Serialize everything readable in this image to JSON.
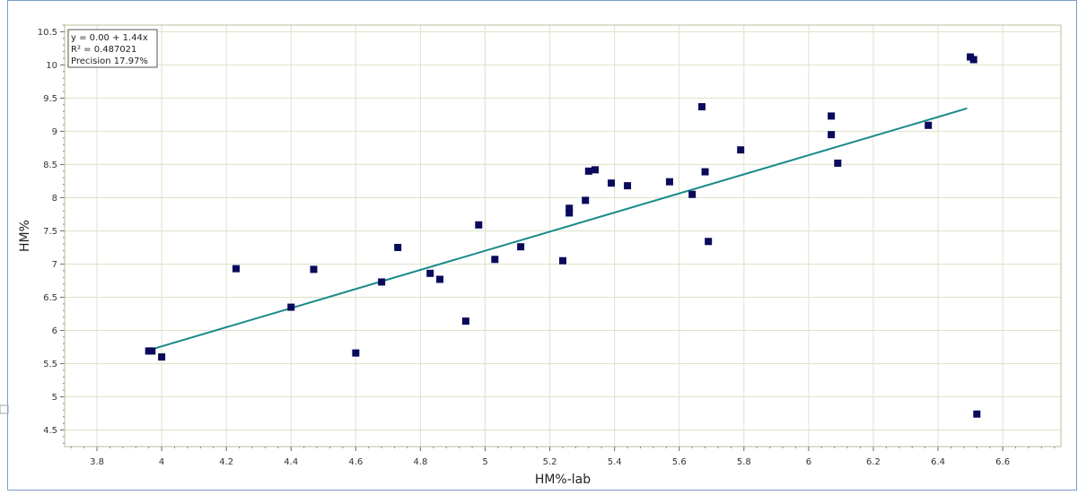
{
  "chart_data": {
    "type": "scatter",
    "xlabel": "HM%-lab",
    "ylabel": "HM%",
    "xlim": [
      3.7,
      6.78
    ],
    "ylim": [
      4.25,
      10.6
    ],
    "x_ticks": [
      "3.8",
      "4",
      "4.2",
      "4.4",
      "4.6",
      "4.8",
      "5",
      "5.2",
      "5.4",
      "5.6",
      "5.8",
      "6",
      "6.2",
      "6.4",
      "6.6"
    ],
    "y_ticks": [
      "4.5",
      "5",
      "5.5",
      "6",
      "6.5",
      "7",
      "7.5",
      "8",
      "8.5",
      "9",
      "9.5",
      "10",
      "10.5"
    ],
    "grid": true,
    "stats": {
      "equation": "y = 0.00 + 1.44x",
      "r2": "R² = 0.487021",
      "precision": "Precision 17.97%"
    },
    "regression": {
      "intercept": 0.0,
      "slope": 1.44,
      "x_range": [
        3.97,
        6.49
      ]
    },
    "points": [
      {
        "x": 3.96,
        "y": 5.69
      },
      {
        "x": 3.97,
        "y": 5.69
      },
      {
        "x": 4.0,
        "y": 5.6
      },
      {
        "x": 4.23,
        "y": 6.93
      },
      {
        "x": 4.4,
        "y": 6.35
      },
      {
        "x": 4.47,
        "y": 6.92
      },
      {
        "x": 4.6,
        "y": 5.66
      },
      {
        "x": 4.68,
        "y": 6.73
      },
      {
        "x": 4.73,
        "y": 7.25
      },
      {
        "x": 4.83,
        "y": 6.86
      },
      {
        "x": 4.86,
        "y": 6.77
      },
      {
        "x": 4.94,
        "y": 6.14
      },
      {
        "x": 4.98,
        "y": 7.59
      },
      {
        "x": 5.03,
        "y": 7.07
      },
      {
        "x": 5.11,
        "y": 7.26
      },
      {
        "x": 5.24,
        "y": 7.05
      },
      {
        "x": 5.26,
        "y": 7.84
      },
      {
        "x": 5.26,
        "y": 7.77
      },
      {
        "x": 5.31,
        "y": 7.96
      },
      {
        "x": 5.32,
        "y": 8.4
      },
      {
        "x": 5.34,
        "y": 8.42
      },
      {
        "x": 5.39,
        "y": 8.22
      },
      {
        "x": 5.44,
        "y": 8.18
      },
      {
        "x": 5.57,
        "y": 8.24
      },
      {
        "x": 5.64,
        "y": 8.05
      },
      {
        "x": 5.67,
        "y": 9.37
      },
      {
        "x": 5.68,
        "y": 8.39
      },
      {
        "x": 5.69,
        "y": 7.34
      },
      {
        "x": 5.79,
        "y": 8.72
      },
      {
        "x": 6.07,
        "y": 9.23
      },
      {
        "x": 6.07,
        "y": 8.95
      },
      {
        "x": 6.09,
        "y": 8.52
      },
      {
        "x": 6.37,
        "y": 9.09
      },
      {
        "x": 6.5,
        "y": 10.12
      },
      {
        "x": 6.51,
        "y": 10.08
      },
      {
        "x": 6.52,
        "y": 4.74
      }
    ],
    "colors": {
      "points": "#0a0a5c",
      "line": "#1a8a8a",
      "grid": "#dde3c8",
      "plot_border": "#b7bf9a",
      "frame": "#7a9cc6"
    }
  }
}
